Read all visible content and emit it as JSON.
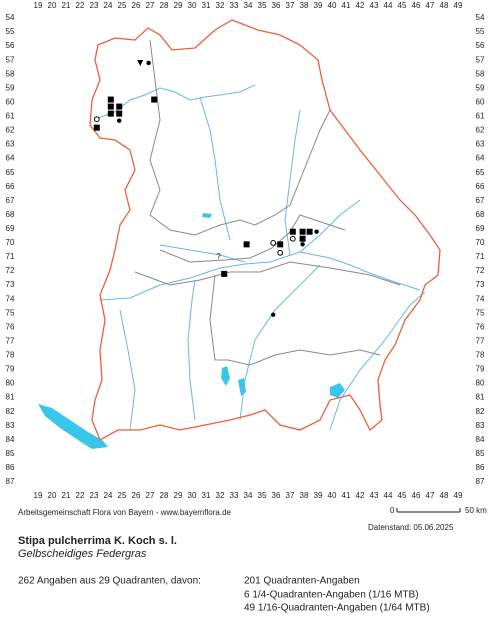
{
  "map": {
    "x_labels": [
      19,
      20,
      21,
      22,
      23,
      24,
      25,
      26,
      27,
      28,
      29,
      30,
      31,
      32,
      33,
      34,
      35,
      36,
      37,
      38,
      39,
      40,
      41,
      42,
      43,
      44,
      45,
      46,
      47,
      48,
      49
    ],
    "y_labels": [
      54,
      55,
      56,
      57,
      58,
      59,
      60,
      61,
      62,
      63,
      64,
      65,
      66,
      67,
      68,
      69,
      70,
      71,
      72,
      73,
      74,
      75,
      76,
      77,
      78,
      79,
      80,
      81,
      82,
      83,
      84,
      85,
      86,
      87
    ],
    "records": [
      {
        "x": 24.2,
        "y": 59.8,
        "symbol": "square"
      },
      {
        "x": 24.8,
        "y": 60.3,
        "symbol": "square"
      },
      {
        "x": 24.2,
        "y": 60.3,
        "symbol": "square"
      },
      {
        "x": 24.2,
        "y": 60.8,
        "symbol": "square"
      },
      {
        "x": 24.8,
        "y": 60.8,
        "symbol": "square"
      },
      {
        "x": 24.8,
        "y": 61.3,
        "symbol": "dot"
      },
      {
        "x": 27.3,
        "y": 59.8,
        "symbol": "square"
      },
      {
        "x": 23.2,
        "y": 61.2,
        "symbol": "circle"
      },
      {
        "x": 23.2,
        "y": 61.8,
        "symbol": "square"
      },
      {
        "x": 26.3,
        "y": 57.2,
        "symbol": "triangle"
      },
      {
        "x": 26.9,
        "y": 57.2,
        "symbol": "dot"
      },
      {
        "x": 37.2,
        "y": 69.2,
        "symbol": "square"
      },
      {
        "x": 37.9,
        "y": 69.2,
        "symbol": "square"
      },
      {
        "x": 38.4,
        "y": 69.2,
        "symbol": "square"
      },
      {
        "x": 38.9,
        "y": 69.2,
        "symbol": "dot"
      },
      {
        "x": 37.2,
        "y": 69.7,
        "symbol": "circle"
      },
      {
        "x": 37.9,
        "y": 69.7,
        "symbol": "square"
      },
      {
        "x": 37.9,
        "y": 70.1,
        "symbol": "dot"
      },
      {
        "x": 33.9,
        "y": 70.1,
        "symbol": "square"
      },
      {
        "x": 36.3,
        "y": 70.1,
        "symbol": "square"
      },
      {
        "x": 35.8,
        "y": 70.0,
        "symbol": "circle"
      },
      {
        "x": 36.3,
        "y": 70.7,
        "symbol": "circle"
      },
      {
        "x": 35.8,
        "y": 75.1,
        "symbol": "dot"
      },
      {
        "x": 32.3,
        "y": 72.2,
        "symbol": "square"
      },
      {
        "x": 31.9,
        "y": 71.0,
        "symbol": "question",
        "label": "?"
      }
    ]
  },
  "footer": {
    "credit": "Arbeitsgemeinschaft Flora von Bayern - www.bayernflora.de",
    "scale_start": "0",
    "scale_end": "50 km",
    "date": "Datenstand: 05.06.2025"
  },
  "species": {
    "name": "Stipa pulcherrima K. Koch s. l.",
    "common_name": "Gelbscheidiges Federgras"
  },
  "summary": {
    "total": "262 Angaben aus 29 Quadranten, davon:",
    "lines": [
      "201 Quadranten-Angaben",
      "6 1/4-Quadranten-Angaben (1/16 MTB)",
      "49 1/16-Quadranten-Angaben (1/64 MTB)"
    ]
  }
}
